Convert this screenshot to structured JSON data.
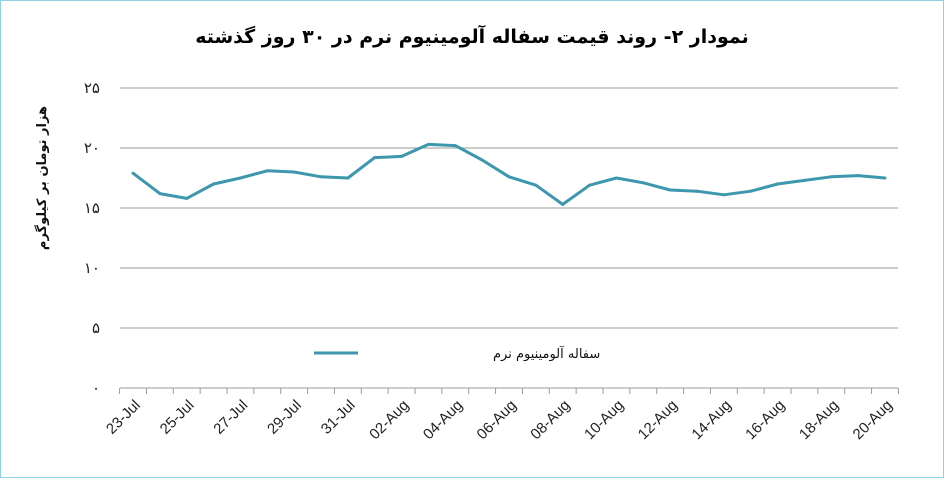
{
  "chart_data": {
    "type": "line",
    "title": "نمودار ۲- روند قیمت سفاله آلومینیوم نرم در ۳۰ روز گذشته",
    "ylabel": "هزار تومان بر کیلوگرم",
    "xlabel": "",
    "ylim": [
      0,
      25
    ],
    "yticks": [
      "۰",
      "۵",
      "۱۰",
      "۱۵",
      "۲۰",
      "۲۵"
    ],
    "ytick_values": [
      0,
      5,
      10,
      15,
      20,
      25
    ],
    "xtick_labels": [
      "23-Jul",
      "25-Jul",
      "27-Jul",
      "29-Jul",
      "31-Jul",
      "02-Aug",
      "04-Aug",
      "06-Aug",
      "08-Aug",
      "10-Aug",
      "12-Aug",
      "14-Aug",
      "16-Aug",
      "18-Aug",
      "20-Aug"
    ],
    "grid": true,
    "legend_position": "lower-left",
    "series": [
      {
        "name": "سفاله آلومینیوم نرم",
        "color": "#3d97ad",
        "x": [
          "23-Jul",
          "24-Jul",
          "25-Jul",
          "26-Jul",
          "27-Jul",
          "28-Jul",
          "29-Jul",
          "30-Jul",
          "31-Jul",
          "01-Aug",
          "02-Aug",
          "03-Aug",
          "04-Aug",
          "05-Aug",
          "06-Aug",
          "07-Aug",
          "08-Aug",
          "09-Aug",
          "10-Aug",
          "11-Aug",
          "12-Aug",
          "13-Aug",
          "14-Aug",
          "15-Aug",
          "16-Aug",
          "17-Aug",
          "18-Aug",
          "19-Aug",
          "20-Aug"
        ],
        "values": [
          17.9,
          16.2,
          15.8,
          17.0,
          17.5,
          18.1,
          18.0,
          17.6,
          17.5,
          19.2,
          19.3,
          20.3,
          20.2,
          19.0,
          17.6,
          16.9,
          15.3,
          16.9,
          17.5,
          17.1,
          16.5,
          16.4,
          16.1,
          16.4,
          17.0,
          17.3,
          17.6,
          17.7,
          17.5
        ]
      }
    ]
  }
}
